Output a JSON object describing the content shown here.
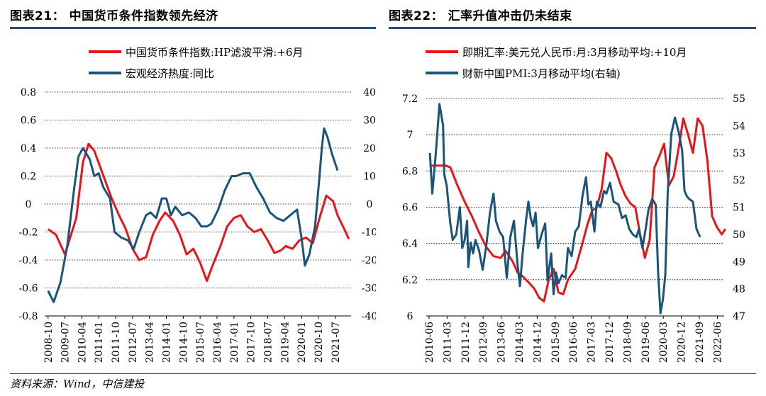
{
  "left_title": "图表21：   中国货币条件指数领先经济",
  "right_title": "图表22：   汇率升值冲击仍未结束",
  "source": "资料来源：Wind，中信建投",
  "colors": {
    "red": "#e8141a",
    "blue": "#1b5479",
    "rule": "#1f4e79"
  },
  "chart_data": [
    {
      "type": "line",
      "legend": [
        "中国货币条件指数:HP滤波平滑:+6月",
        "宏观经济热度:同比"
      ],
      "y_left_ticks": [
        "0.8",
        "0.6",
        "0.4",
        "0.2",
        "0",
        "-0.2",
        "-0.4",
        "-0.6",
        "-0.8"
      ],
      "y_right_ticks": [
        "40",
        "30",
        "20",
        "10",
        "0",
        "-10",
        "-20",
        "-30",
        "-40"
      ],
      "ylim_left": [
        -0.8,
        0.8
      ],
      "ylim_right": [
        -40,
        40
      ],
      "x_ticks": [
        "2008-10",
        "2009-07",
        "2010-04",
        "2011-01",
        "2011-10",
        "2012-07",
        "2013-04",
        "2014-01",
        "2014-10",
        "2015-07",
        "2016-04",
        "2017-01",
        "2017-10",
        "2018-07",
        "2019-04",
        "2020-01",
        "2020-10",
        "2021-07"
      ],
      "series": [
        {
          "name": "中国货币条件指数:HP滤波平滑:+6月",
          "axis": "left",
          "x": [
            2008.75,
            2009.1,
            2009.5,
            2010.0,
            2010.3,
            2010.55,
            2010.8,
            2011.3,
            2011.55,
            2011.9,
            2012.2,
            2012.5,
            2012.8,
            2013.1,
            2013.4,
            2013.7,
            2013.95,
            2014.3,
            2014.6,
            2014.9,
            2015.2,
            2015.5,
            2015.8,
            2016.0,
            2016.4,
            2016.7,
            2017.0,
            2017.3,
            2017.6,
            2017.9,
            2018.2,
            2018.5,
            2018.8,
            2019.1,
            2019.3,
            2019.6,
            2019.9,
            2020.2,
            2020.5,
            2020.8,
            2021.1,
            2021.4,
            2021.6,
            2021.9,
            2022.1
          ],
          "y": [
            -0.18,
            -0.22,
            -0.36,
            -0.1,
            0.3,
            0.43,
            0.38,
            0.16,
            0.05,
            -0.08,
            -0.18,
            -0.32,
            -0.4,
            -0.38,
            -0.22,
            -0.12,
            -0.06,
            -0.12,
            -0.22,
            -0.36,
            -0.32,
            -0.42,
            -0.55,
            -0.46,
            -0.3,
            -0.16,
            -0.1,
            -0.08,
            -0.16,
            -0.2,
            -0.18,
            -0.26,
            -0.35,
            -0.33,
            -0.3,
            -0.32,
            -0.26,
            -0.24,
            -0.28,
            -0.1,
            0.06,
            0.02,
            -0.08,
            -0.18,
            -0.25
          ]
        },
        {
          "name": "宏观经济热度:同比",
          "axis": "right",
          "x": [
            2008.75,
            2009.0,
            2009.3,
            2009.6,
            2009.9,
            2010.1,
            2010.3,
            2010.6,
            2010.8,
            2011.0,
            2011.2,
            2011.5,
            2011.7,
            2012.0,
            2012.3,
            2012.55,
            2012.8,
            2013.1,
            2013.3,
            2013.55,
            2013.8,
            2014.0,
            2014.2,
            2014.4,
            2014.7,
            2015.0,
            2015.3,
            2015.55,
            2015.8,
            2016.0,
            2016.3,
            2016.6,
            2016.9,
            2017.1,
            2017.4,
            2017.7,
            2018.0,
            2018.3,
            2018.6,
            2018.9,
            2019.2,
            2019.5,
            2019.8,
            2020.0,
            2020.15,
            2020.35,
            2020.6,
            2020.8,
            2020.9,
            2021.0,
            2021.15,
            2021.35,
            2021.6
          ],
          "y": [
            -31,
            -35,
            -28,
            -15,
            5,
            17,
            20,
            16,
            10,
            11,
            6,
            2,
            -10,
            -12,
            -13,
            -16,
            -10,
            -4,
            -3,
            -5,
            2,
            2,
            -4,
            -1,
            -4,
            -3,
            -5,
            -8,
            -8,
            -7,
            -2,
            5,
            10,
            10,
            11,
            11,
            6,
            2,
            -3,
            -5,
            -6,
            -4,
            -2,
            -12,
            -22,
            -18,
            -8,
            10,
            20,
            27,
            24,
            18,
            12
          ]
        }
      ]
    },
    {
      "type": "line",
      "legend": [
        "即期汇率:美元兑人民币:月:3月移动平均:+10月",
        "财新中国PMI:3月移动平均(右轴)"
      ],
      "y_left_ticks": [
        "7.2",
        "7",
        "6.8",
        "6.6",
        "6.4",
        "6.2",
        "6"
      ],
      "y_right_ticks": [
        "55",
        "54",
        "53",
        "52",
        "51",
        "50",
        "49",
        "48",
        "47"
      ],
      "ylim_left": [
        6.0,
        7.2
      ],
      "ylim_right": [
        47,
        55
      ],
      "x_ticks": [
        "2010-06",
        "2011-03",
        "2011-12",
        "2012-09",
        "2013-06",
        "2014-03",
        "2014-12",
        "2015-09",
        "2016-06",
        "2017-03",
        "2017-12",
        "2018-09",
        "2019-06",
        "2020-03",
        "2020-12",
        "2021-09",
        "2022-06"
      ],
      "series": [
        {
          "name": "即期汇率:美元兑人民币:月:3月移动平均:+10月",
          "axis": "left",
          "x": [
            2010.45,
            2010.8,
            2011.1,
            2011.3,
            2011.6,
            2011.9,
            2012.2,
            2012.5,
            2012.8,
            2013.1,
            2013.4,
            2013.6,
            2013.9,
            2014.1,
            2014.3,
            2014.6,
            2014.8,
            2015.0,
            2015.2,
            2015.4,
            2015.6,
            2015.8,
            2016.0,
            2016.2,
            2016.5,
            2016.8,
            2017.0,
            2017.2,
            2017.4,
            2017.6,
            2017.8,
            2018.0,
            2018.2,
            2018.4,
            2018.6,
            2018.8,
            2019.0,
            2019.2,
            2019.4,
            2019.6,
            2019.8,
            2020.0,
            2020.2,
            2020.4,
            2020.6,
            2020.8,
            2021.0,
            2021.2,
            2021.4,
            2021.6,
            2021.8,
            2022.0,
            2022.2,
            2022.4,
            2022.6,
            2022.75
          ],
          "y": [
            6.83,
            6.83,
            6.83,
            6.82,
            6.72,
            6.63,
            6.55,
            6.46,
            6.38,
            6.33,
            6.32,
            6.36,
            6.3,
            6.24,
            6.22,
            6.18,
            6.15,
            6.1,
            6.08,
            6.2,
            6.26,
            6.13,
            6.12,
            6.2,
            6.26,
            6.4,
            6.5,
            6.58,
            6.6,
            6.7,
            6.9,
            6.87,
            6.8,
            6.72,
            6.66,
            6.62,
            6.6,
            6.45,
            6.32,
            6.42,
            6.82,
            6.88,
            6.95,
            6.72,
            6.77,
            6.92,
            7.09,
            7.0,
            6.9,
            7.09,
            7.05,
            6.86,
            6.55,
            6.49,
            6.45,
            6.48
          ]
        },
        {
          "name": "财新中国PMI:3月移动平均(右轴)",
          "axis": "right",
          "x": [
            2010.45,
            2010.55,
            2010.7,
            2010.85,
            2011.0,
            2011.05,
            2011.15,
            2011.3,
            2011.4,
            2011.55,
            2011.7,
            2011.8,
            2011.9,
            2012.0,
            2012.05,
            2012.15,
            2012.25,
            2012.35,
            2012.5,
            2012.65,
            2012.8,
            2012.95,
            2013.1,
            2013.2,
            2013.35,
            2013.5,
            2013.65,
            2013.8,
            2013.95,
            2014.1,
            2014.2,
            2014.3,
            2014.45,
            2014.55,
            2014.65,
            2014.75,
            2014.85,
            2014.95,
            2015.1,
            2015.25,
            2015.35,
            2015.5,
            2015.6,
            2015.7,
            2015.8,
            2015.95,
            2016.1,
            2016.2,
            2016.35,
            2016.5,
            2016.65,
            2016.8,
            2016.95,
            2017.05,
            2017.15,
            2017.3,
            2017.4,
            2017.55,
            2017.7,
            2017.8,
            2017.95,
            2018.1,
            2018.3,
            2018.45,
            2018.6,
            2018.75,
            2018.9,
            2019.05,
            2019.15,
            2019.3,
            2019.45,
            2019.55,
            2019.7,
            2019.85,
            2019.95,
            2020.05,
            2020.15,
            2020.25,
            2020.35,
            2020.5,
            2020.65,
            2020.8,
            2020.95,
            2021.05,
            2021.15,
            2021.25,
            2021.4,
            2021.55,
            2021.7
          ],
          "y": [
            53,
            51.5,
            53,
            54.8,
            54,
            52.2,
            51.8,
            50.4,
            49.8,
            50,
            51,
            49.5,
            49.8,
            50.5,
            48.8,
            49.7,
            49.3,
            49.8,
            49.4,
            48.7,
            49.6,
            50.8,
            51.5,
            50.5,
            50.1,
            49.9,
            48.4,
            49.9,
            50.5,
            48.9,
            48.1,
            49.2,
            50.5,
            51.2,
            50.6,
            50.3,
            50.8,
            49.5,
            50,
            50.4,
            48.3,
            49.3,
            47.8,
            48.6,
            48.2,
            48.5,
            48.4,
            49.5,
            49.2,
            50.1,
            50.3,
            51.4,
            52.1,
            51.1,
            51.2,
            50.1,
            51.2,
            51,
            51.6,
            51.5,
            51.9,
            51.2,
            51.1,
            50.6,
            50.7,
            50.2,
            50,
            49.9,
            50.2,
            49.5,
            50.3,
            50.9,
            51.3,
            51.1,
            48.6,
            47.1,
            47.6,
            48.5,
            51.5,
            53.7,
            54.3,
            53.8,
            53.1,
            51.6,
            51.4,
            51.3,
            51.2,
            50.2,
            49.9
          ]
        }
      ]
    }
  ]
}
